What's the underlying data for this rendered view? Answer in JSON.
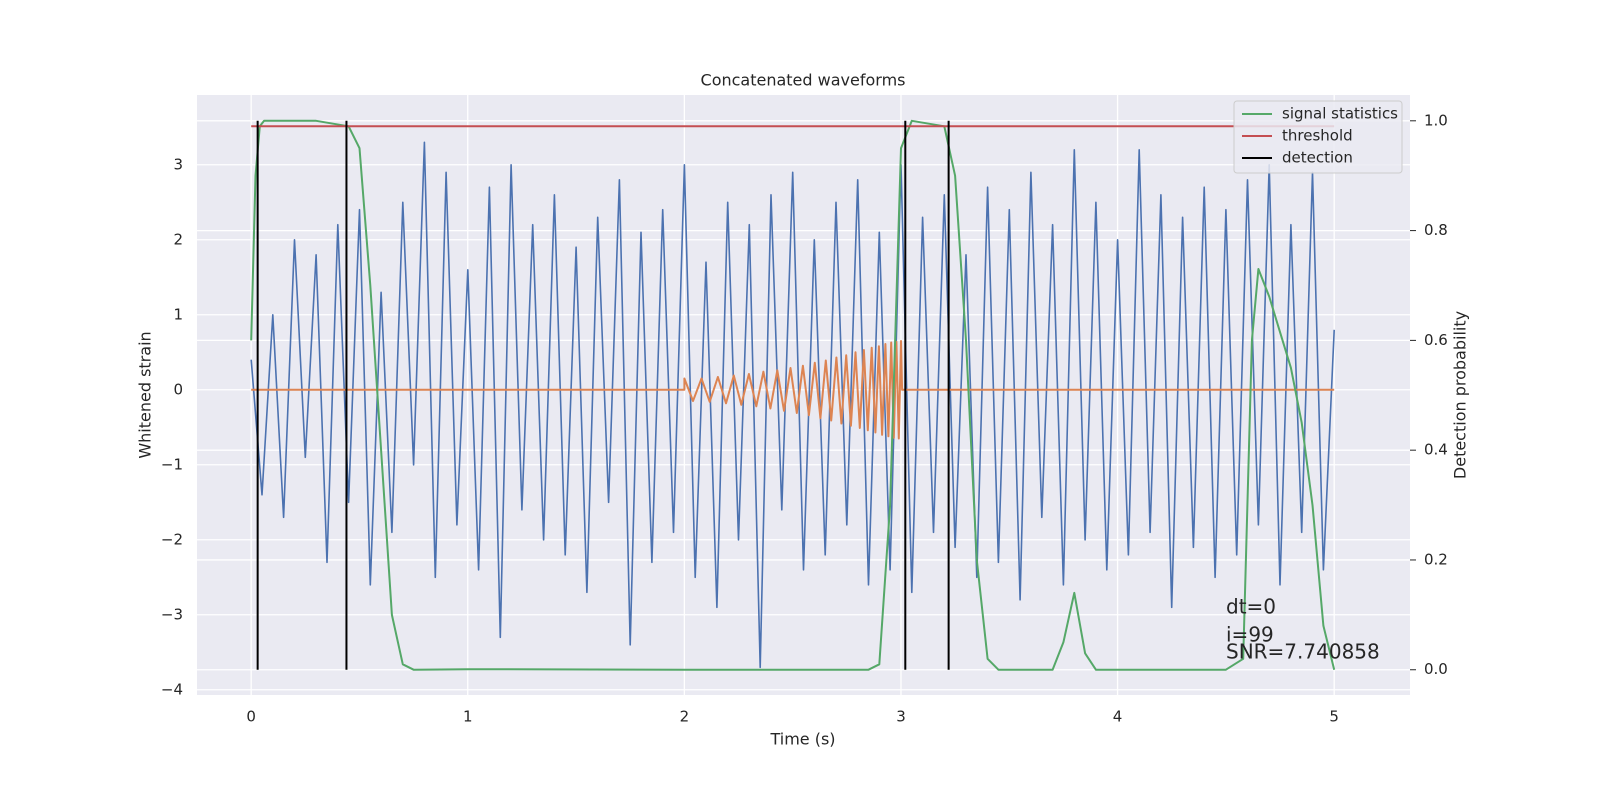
{
  "chart_data": {
    "type": "line",
    "title": "Concatenated waveforms",
    "xlabel": "Time (s)",
    "ylabel": "Whitened strain",
    "y2label": "Detection probability",
    "xlim": [
      -0.25,
      5.35
    ],
    "ylim": [
      -4.07,
      3.93
    ],
    "y2lim": [
      -0.046,
      1.047
    ],
    "xticks": [
      0,
      1,
      2,
      3,
      4,
      5
    ],
    "yticks": [
      {
        "value": -4,
        "label": "−4"
      },
      {
        "value": -3,
        "label": "−3"
      },
      {
        "value": -2,
        "label": "−2"
      },
      {
        "value": -1,
        "label": "−1"
      },
      0,
      1,
      2,
      3
    ],
    "y2ticks": [
      {
        "value": 0,
        "label": "0.0"
      },
      0.2,
      0.4,
      0.6,
      0.8,
      {
        "value": 1,
        "label": "1.0"
      }
    ],
    "grid": true,
    "legend": "upper right",
    "series": [
      {
        "color": "#4c72b0",
        "x": [
          0,
          0.05,
          0.1,
          0.15,
          0.2,
          0.25,
          0.3,
          0.35,
          0.4,
          0.45,
          0.5,
          0.55,
          0.6,
          0.65,
          0.7,
          0.75,
          0.8,
          0.85,
          0.9,
          0.95,
          1,
          1.05,
          1.1,
          1.15,
          1.2,
          1.25,
          1.3,
          1.35,
          1.4,
          1.45,
          1.5,
          1.55,
          1.6,
          1.65,
          1.7,
          1.75,
          1.8,
          1.85,
          1.9,
          1.95,
          2,
          2.05,
          2.1,
          2.15,
          2.2,
          2.25,
          2.3,
          2.35,
          2.4,
          2.45,
          2.5,
          2.55,
          2.6,
          2.65,
          2.7,
          2.75,
          2.8,
          2.85,
          2.9,
          2.95,
          3,
          3.05,
          3.1,
          3.15,
          3.2,
          3.25,
          3.3,
          3.35,
          3.4,
          3.45,
          3.5,
          3.55,
          3.6,
          3.65,
          3.7,
          3.75,
          3.8,
          3.85,
          3.9,
          3.95,
          4,
          4.05,
          4.1,
          4.15,
          4.2,
          4.25,
          4.3,
          4.35,
          4.4,
          4.45,
          4.5,
          4.55,
          4.6,
          4.65,
          4.7,
          4.75,
          4.8,
          4.85,
          4.9,
          4.95,
          5
        ],
        "values": [
          0.4,
          -1.4,
          1.0,
          -1.7,
          2.0,
          -0.9,
          1.8,
          -2.3,
          2.2,
          -1.5,
          2.4,
          -2.6,
          1.3,
          -1.9,
          2.5,
          -1.0,
          3.3,
          -2.5,
          2.9,
          -1.8,
          1.6,
          -2.4,
          2.7,
          -3.3,
          3.0,
          -1.6,
          2.2,
          -2.0,
          2.6,
          -2.2,
          1.9,
          -2.7,
          2.3,
          -1.5,
          2.8,
          -3.4,
          2.1,
          -2.3,
          2.4,
          -1.9,
          3.0,
          -2.5,
          1.7,
          -2.9,
          2.5,
          -2.0,
          2.2,
          -3.7,
          2.6,
          -1.6,
          2.9,
          -2.4,
          2.0,
          -2.2,
          2.5,
          -1.8,
          2.8,
          -2.6,
          2.1,
          -2.4,
          3.0,
          -2.7,
          2.3,
          -1.9,
          2.6,
          -2.1,
          1.8,
          -2.5,
          2.7,
          -2.3,
          2.4,
          -2.8,
          2.9,
          -1.7,
          2.2,
          -2.6,
          3.2,
          -2.0,
          2.5,
          -2.4,
          2.0,
          -2.2,
          3.2,
          -1.9,
          2.6,
          -2.9,
          2.3,
          -2.1,
          2.7,
          -2.5,
          2.4,
          -2.2,
          2.8,
          -1.8,
          3.0,
          -2.6,
          2.2,
          -1.9,
          2.9,
          -2.4,
          0.8
        ]
      },
      {
        "color": "#dd8452",
        "x": [
          0,
          2.0,
          2.0,
          2.04,
          2.079,
          2.117,
          2.155,
          2.192,
          2.228,
          2.263,
          2.298,
          2.332,
          2.365,
          2.397,
          2.429,
          2.46,
          2.49,
          2.519,
          2.547,
          2.575,
          2.602,
          2.628,
          2.653,
          2.678,
          2.702,
          2.725,
          2.747,
          2.769,
          2.79,
          2.81,
          2.829,
          2.847,
          2.865,
          2.882,
          2.898,
          2.913,
          2.928,
          2.942,
          2.955,
          2.967,
          2.979,
          2.99,
          3.0,
          3.005,
          5
        ],
        "values": [
          0,
          0,
          0.15,
          -0.15,
          0.15,
          -0.16,
          0.17,
          -0.18,
          0.19,
          -0.2,
          0.21,
          -0.22,
          0.24,
          -0.25,
          0.26,
          -0.28,
          0.29,
          -0.31,
          0.32,
          -0.34,
          0.36,
          -0.38,
          0.39,
          -0.41,
          0.43,
          -0.45,
          0.46,
          -0.48,
          0.5,
          -0.51,
          0.53,
          -0.54,
          0.56,
          -0.57,
          0.58,
          -0.6,
          0.61,
          -0.62,
          0.63,
          -0.64,
          0.64,
          -0.65,
          0.65,
          0,
          0
        ]
      },
      {
        "name": "signal statistics",
        "color": "#55a868",
        "axis": "y2",
        "x": [
          0,
          0.02,
          0.04,
          0.06,
          0.1,
          0.3,
          0.45,
          0.5,
          0.55,
          0.6,
          0.65,
          0.7,
          0.75,
          1,
          2,
          2.85,
          2.9,
          2.95,
          3.0,
          3.05,
          3.2,
          3.25,
          3.3,
          3.35,
          3.4,
          3.45,
          3.7,
          3.75,
          3.8,
          3.85,
          3.9,
          4.5,
          4.58,
          4.62,
          4.65,
          4.7,
          4.8,
          4.85,
          4.9,
          4.95,
          5.0
        ],
        "values": [
          0.6,
          0.9,
          0.99,
          1.0,
          1.0,
          1.0,
          0.99,
          0.95,
          0.7,
          0.4,
          0.1,
          0.01,
          0,
          0.001,
          0,
          0,
          0.01,
          0.3,
          0.95,
          1.0,
          0.99,
          0.9,
          0.6,
          0.2,
          0.02,
          0,
          0,
          0.05,
          0.14,
          0.03,
          0,
          0,
          0.02,
          0.6,
          0.73,
          0.68,
          0.55,
          0.45,
          0.3,
          0.08,
          0
        ]
      },
      {
        "name": "threshold",
        "color": "#c44e52",
        "axis": "y2",
        "x": [
          0,
          5
        ],
        "values": [
          0.99,
          0.99
        ]
      },
      {
        "name": "detection",
        "color": "#000000",
        "axis": "y2",
        "x": [
          0.03,
          0.44,
          3.02,
          3.22
        ]
      }
    ],
    "annotations": [
      "dt=0",
      "i=99",
      "SNR=7.740858"
    ]
  }
}
